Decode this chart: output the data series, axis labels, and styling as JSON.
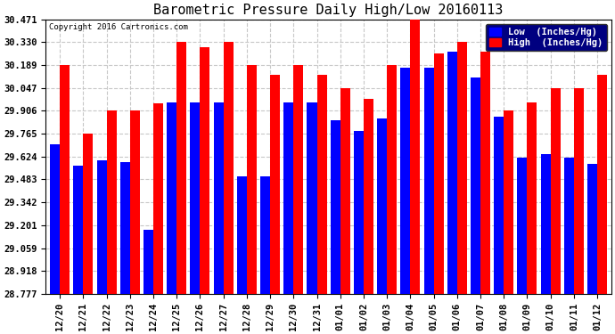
{
  "title": "Barometric Pressure Daily High/Low 20160113",
  "copyright": "Copyright 2016 Cartronics.com",
  "ylabel_low": "Low  (Inches/Hg)",
  "ylabel_high": "High  (Inches/Hg)",
  "categories": [
    "12/20",
    "12/21",
    "12/22",
    "12/23",
    "12/24",
    "12/25",
    "12/26",
    "12/27",
    "12/28",
    "12/29",
    "12/30",
    "12/31",
    "01/01",
    "01/02",
    "01/03",
    "01/04",
    "01/05",
    "01/06",
    "01/07",
    "01/08",
    "01/09",
    "01/10",
    "01/11",
    "01/12"
  ],
  "low_values": [
    29.7,
    29.57,
    29.6,
    29.59,
    29.17,
    29.96,
    29.96,
    29.96,
    29.5,
    29.5,
    29.96,
    29.96,
    29.85,
    29.78,
    29.86,
    30.175,
    30.175,
    30.27,
    30.11,
    29.87,
    29.62,
    29.64,
    29.62,
    29.58
  ],
  "high_values": [
    30.189,
    29.765,
    29.906,
    29.906,
    29.95,
    30.33,
    30.3,
    30.33,
    30.189,
    30.13,
    30.189,
    30.13,
    30.047,
    29.98,
    30.189,
    30.471,
    30.26,
    30.33,
    30.27,
    29.906,
    29.96,
    30.047,
    30.047,
    30.13
  ],
  "low_color": "#0000ff",
  "high_color": "#ff0000",
  "bg_color": "#ffffff",
  "plot_bg_color": "#ffffff",
  "grid_color": "#c8c8c8",
  "ymin": 28.777,
  "ymax": 30.471,
  "yticks": [
    28.777,
    28.918,
    29.059,
    29.201,
    29.342,
    29.483,
    29.624,
    29.765,
    29.906,
    30.047,
    30.189,
    30.33,
    30.471
  ],
  "title_fontsize": 11,
  "tick_fontsize": 7.5,
  "legend_fontsize": 7.5
}
